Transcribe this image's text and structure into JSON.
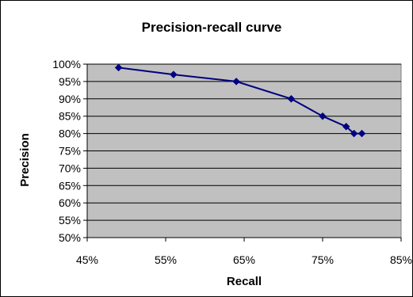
{
  "chart_data": {
    "type": "line",
    "title": "Precision-recall curve",
    "xlabel": "Recall",
    "ylabel": "Precision",
    "xlim": [
      45,
      85
    ],
    "ylim": [
      50,
      100
    ],
    "xticks": [
      45,
      55,
      65,
      75,
      85
    ],
    "yticks": [
      50,
      55,
      60,
      65,
      70,
      75,
      80,
      85,
      90,
      95,
      100
    ],
    "tick_suffix": "%",
    "grid": "horizontal",
    "legend": "none",
    "series": [
      {
        "x": [
          49,
          56,
          64,
          71,
          75,
          78,
          79,
          80
        ],
        "y": [
          99,
          97,
          95,
          90,
          85,
          82,
          80,
          80
        ],
        "marker": "diamond"
      }
    ],
    "colors": {
      "line": "#000080",
      "plot_bg": "#c0c0c0",
      "grid": "#000000"
    }
  }
}
